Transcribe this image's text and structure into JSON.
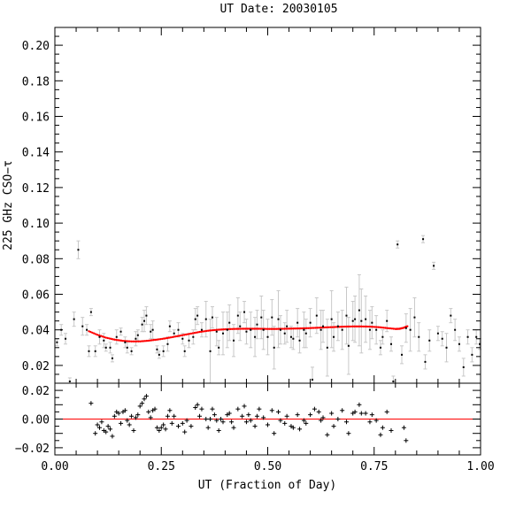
{
  "chart_data": {
    "type": "scatter",
    "title": "UT Date: 20030105",
    "xlabel": "UT (Fraction of Day)",
    "ylabel": "225 GHz CSO−τ",
    "xlim": [
      0.0,
      1.0
    ],
    "ylim": [
      0.01,
      0.21
    ],
    "resid_ylim": [
      -0.025,
      0.025
    ],
    "x_ticks": [
      "0.00",
      "0.25",
      "0.50",
      "0.75",
      "1.00"
    ],
    "y_ticks": [
      "0.02",
      "0.04",
      "0.06",
      "0.08",
      "0.10",
      "0.12",
      "0.14",
      "0.16",
      "0.18",
      "0.20"
    ],
    "resid_ticks": [
      "−0.02",
      "0.00",
      "0.02"
    ],
    "colors": {
      "points": "#000000",
      "errorbars": "#c8c8c8",
      "fit": "#ff0000",
      "zero_line": "#ff0000"
    },
    "grid": false,
    "series": [
      {
        "values": [
          [
            0.005,
            0.033,
            0.002
          ],
          [
            0.015,
            0.04,
            0.003
          ],
          [
            0.025,
            0.035,
            0.003
          ],
          [
            0.035,
            0.011,
            0.002
          ],
          [
            0.045,
            0.046,
            0.004
          ],
          [
            0.055,
            0.085,
            0.005
          ],
          [
            0.065,
            0.042,
            0.005
          ],
          [
            0.075,
            0.04,
            0.003
          ],
          [
            0.08,
            0.028,
            0.003
          ],
          [
            0.085,
            0.05,
            0.002
          ],
          [
            0.095,
            0.028,
            0.003
          ],
          [
            0.105,
            0.036,
            0.004
          ],
          [
            0.115,
            0.034,
            0.004
          ],
          [
            0.12,
            0.03,
            0.002
          ],
          [
            0.13,
            0.03,
            0.003
          ],
          [
            0.135,
            0.024,
            0.002
          ],
          [
            0.145,
            0.036,
            0.004
          ],
          [
            0.155,
            0.039,
            0.002
          ],
          [
            0.165,
            0.033,
            0.003
          ],
          [
            0.17,
            0.03,
            0.003
          ],
          [
            0.18,
            0.028,
            0.002
          ],
          [
            0.19,
            0.035,
            0.004
          ],
          [
            0.195,
            0.037,
            0.003
          ],
          [
            0.205,
            0.043,
            0.004
          ],
          [
            0.21,
            0.045,
            0.006
          ],
          [
            0.215,
            0.048,
            0.005
          ],
          [
            0.225,
            0.039,
            0.004
          ],
          [
            0.23,
            0.04,
            0.005
          ],
          [
            0.24,
            0.029,
            0.002
          ],
          [
            0.245,
            0.026,
            0.002
          ],
          [
            0.255,
            0.028,
            0.003
          ],
          [
            0.265,
            0.032,
            0.004
          ],
          [
            0.27,
            0.042,
            0.003
          ],
          [
            0.28,
            0.038,
            0.002
          ],
          [
            0.29,
            0.04,
            0.004
          ],
          [
            0.3,
            0.035,
            0.003
          ],
          [
            0.305,
            0.028,
            0.003
          ],
          [
            0.315,
            0.034,
            0.004
          ],
          [
            0.325,
            0.036,
            0.004
          ],
          [
            0.33,
            0.046,
            0.006
          ],
          [
            0.335,
            0.048,
            0.005
          ],
          [
            0.345,
            0.04,
            0.004
          ],
          [
            0.355,
            0.046,
            0.01
          ],
          [
            0.365,
            0.028,
            0.018
          ],
          [
            0.37,
            0.047,
            0.006
          ],
          [
            0.38,
            0.039,
            0.008
          ],
          [
            0.385,
            0.03,
            0.004
          ],
          [
            0.395,
            0.038,
            0.012
          ],
          [
            0.405,
            0.04,
            0.01
          ],
          [
            0.41,
            0.044,
            0.01
          ],
          [
            0.42,
            0.034,
            0.009
          ],
          [
            0.43,
            0.048,
            0.01
          ],
          [
            0.435,
            0.042,
            0.008
          ],
          [
            0.445,
            0.05,
            0.006
          ],
          [
            0.45,
            0.039,
            0.007
          ],
          [
            0.46,
            0.04,
            0.01
          ],
          [
            0.47,
            0.036,
            0.011
          ],
          [
            0.475,
            0.043,
            0.008
          ],
          [
            0.485,
            0.047,
            0.012
          ],
          [
            0.49,
            0.04,
            0.011
          ],
          [
            0.5,
            0.036,
            0.01
          ],
          [
            0.51,
            0.047,
            0.01
          ],
          [
            0.515,
            0.03,
            0.012
          ],
          [
            0.525,
            0.046,
            0.016
          ],
          [
            0.53,
            0.04,
            0.008
          ],
          [
            0.54,
            0.038,
            0.006
          ],
          [
            0.545,
            0.042,
            0.009
          ],
          [
            0.555,
            0.036,
            0.006
          ],
          [
            0.56,
            0.035,
            0.006
          ],
          [
            0.57,
            0.044,
            0.008
          ],
          [
            0.575,
            0.034,
            0.007
          ],
          [
            0.585,
            0.04,
            0.01
          ],
          [
            0.59,
            0.038,
            0.008
          ],
          [
            0.6,
            0.044,
            0.008
          ],
          [
            0.605,
            0.012,
            0.007
          ],
          [
            0.615,
            0.048,
            0.01
          ],
          [
            0.625,
            0.04,
            0.011
          ],
          [
            0.63,
            0.042,
            0.009
          ],
          [
            0.64,
            0.03,
            0.016
          ],
          [
            0.65,
            0.046,
            0.016
          ],
          [
            0.655,
            0.036,
            0.008
          ],
          [
            0.665,
            0.042,
            0.008
          ],
          [
            0.675,
            0.04,
            0.011
          ],
          [
            0.685,
            0.048,
            0.016
          ],
          [
            0.69,
            0.031,
            0.016
          ],
          [
            0.7,
            0.045,
            0.011
          ],
          [
            0.705,
            0.046,
            0.013
          ],
          [
            0.715,
            0.051,
            0.02
          ],
          [
            0.72,
            0.045,
            0.018
          ],
          [
            0.73,
            0.046,
            0.013
          ],
          [
            0.74,
            0.04,
            0.011
          ],
          [
            0.745,
            0.044,
            0.009
          ],
          [
            0.755,
            0.04,
            0.008
          ],
          [
            0.765,
            0.03,
            0.004
          ],
          [
            0.77,
            0.036,
            0.004
          ],
          [
            0.78,
            0.045,
            0.006
          ],
          [
            0.79,
            0.032,
            0.004
          ],
          [
            0.795,
            0.011,
            0.003
          ],
          [
            0.805,
            0.088,
            0.002
          ],
          [
            0.815,
            0.026,
            0.005
          ],
          [
            0.825,
            0.041,
            0.008
          ],
          [
            0.835,
            0.04,
            0.012
          ],
          [
            0.845,
            0.047,
            0.011
          ],
          [
            0.855,
            0.036,
            0.008
          ],
          [
            0.865,
            0.091,
            0.002
          ],
          [
            0.87,
            0.022,
            0.004
          ],
          [
            0.88,
            0.034,
            0.006
          ],
          [
            0.89,
            0.076,
            0.002
          ],
          [
            0.9,
            0.038,
            0.004
          ],
          [
            0.91,
            0.035,
            0.004
          ],
          [
            0.92,
            0.03,
            0.008
          ],
          [
            0.93,
            0.048,
            0.004
          ],
          [
            0.94,
            0.04,
            0.006
          ],
          [
            0.95,
            0.032,
            0.004
          ],
          [
            0.96,
            0.019,
            0.005
          ],
          [
            0.97,
            0.036,
            0.004
          ],
          [
            0.98,
            0.026,
            0.004
          ],
          [
            0.99,
            0.036,
            0.004
          ],
          [
            0.998,
            0.032,
            0.003
          ]
        ]
      }
    ],
    "fit": {
      "x": [
        0.08,
        0.1,
        0.12,
        0.14,
        0.16,
        0.18,
        0.2,
        0.22,
        0.24,
        0.26,
        0.28,
        0.3,
        0.32,
        0.34,
        0.36,
        0.38,
        0.4,
        0.42,
        0.44,
        0.46,
        0.48,
        0.5,
        0.52,
        0.54,
        0.56,
        0.58,
        0.6,
        0.62,
        0.64,
        0.66,
        0.68,
        0.7,
        0.72,
        0.74,
        0.76,
        0.78,
        0.8,
        0.81,
        0.82,
        0.83
      ],
      "y": [
        0.0392,
        0.0372,
        0.0356,
        0.0345,
        0.0338,
        0.0335,
        0.0335,
        0.0339,
        0.0345,
        0.0352,
        0.0361,
        0.037,
        0.0379,
        0.0388,
        0.0395,
        0.04,
        0.0403,
        0.0405,
        0.0406,
        0.0406,
        0.0406,
        0.0405,
        0.0405,
        0.0406,
        0.0407,
        0.0408,
        0.041,
        0.0412,
        0.0414,
        0.0416,
        0.0418,
        0.0419,
        0.0419,
        0.0418,
        0.0415,
        0.041,
        0.0405,
        0.0406,
        0.0412,
        0.0422
      ]
    },
    "residuals": [
      [
        0.085,
        0.011
      ],
      [
        0.095,
        -0.01
      ],
      [
        0.1,
        -0.004
      ],
      [
        0.105,
        -0.006
      ],
      [
        0.11,
        -0.002
      ],
      [
        0.115,
        -0.008
      ],
      [
        0.12,
        -0.009
      ],
      [
        0.125,
        -0.005
      ],
      [
        0.13,
        -0.007
      ],
      [
        0.135,
        -0.012
      ],
      [
        0.14,
        0.002
      ],
      [
        0.145,
        0.005
      ],
      [
        0.15,
        0.004
      ],
      [
        0.155,
        -0.003
      ],
      [
        0.16,
        0.005
      ],
      [
        0.165,
        0.006
      ],
      [
        0.17,
        -0.001
      ],
      [
        0.175,
        -0.004
      ],
      [
        0.18,
        0.002
      ],
      [
        0.185,
        -0.008
      ],
      [
        0.19,
        0.001
      ],
      [
        0.195,
        0.003
      ],
      [
        0.2,
        0.009
      ],
      [
        0.205,
        0.011
      ],
      [
        0.21,
        0.014
      ],
      [
        0.215,
        0.016
      ],
      [
        0.22,
        0.005
      ],
      [
        0.225,
        0.001
      ],
      [
        0.23,
        0.006
      ],
      [
        0.235,
        0.007
      ],
      [
        0.24,
        -0.006
      ],
      [
        0.245,
        -0.008
      ],
      [
        0.25,
        -0.006
      ],
      [
        0.255,
        -0.004
      ],
      [
        0.26,
        -0.007
      ],
      [
        0.265,
        0.002
      ],
      [
        0.27,
        0.006
      ],
      [
        0.275,
        -0.003
      ],
      [
        0.28,
        0.002
      ],
      [
        0.29,
        -0.005
      ],
      [
        0.3,
        -0.003
      ],
      [
        0.305,
        -0.009
      ],
      [
        0.31,
        -0.001
      ],
      [
        0.32,
        -0.005
      ],
      [
        0.33,
        0.008
      ],
      [
        0.335,
        0.01
      ],
      [
        0.34,
        0.002
      ],
      [
        0.345,
        0.007
      ],
      [
        0.355,
        0.0
      ],
      [
        0.36,
        -0.006
      ],
      [
        0.365,
        0.0
      ],
      [
        0.37,
        0.007
      ],
      [
        0.375,
        0.003
      ],
      [
        0.38,
        -0.001
      ],
      [
        0.385,
        -0.008
      ],
      [
        0.39,
        0.0
      ],
      [
        0.395,
        -0.002
      ],
      [
        0.405,
        0.003
      ],
      [
        0.41,
        0.004
      ],
      [
        0.415,
        -0.002
      ],
      [
        0.42,
        -0.006
      ],
      [
        0.43,
        0.007
      ],
      [
        0.44,
        0.002
      ],
      [
        0.445,
        0.009
      ],
      [
        0.45,
        -0.002
      ],
      [
        0.455,
        0.003
      ],
      [
        0.46,
        -0.001
      ],
      [
        0.47,
        -0.005
      ],
      [
        0.475,
        0.002
      ],
      [
        0.48,
        0.007
      ],
      [
        0.49,
        0.001
      ],
      [
        0.5,
        -0.004
      ],
      [
        0.51,
        0.006
      ],
      [
        0.515,
        -0.01
      ],
      [
        0.525,
        0.005
      ],
      [
        0.53,
        -0.001
      ],
      [
        0.54,
        -0.003
      ],
      [
        0.545,
        0.002
      ],
      [
        0.555,
        -0.005
      ],
      [
        0.56,
        -0.006
      ],
      [
        0.57,
        0.003
      ],
      [
        0.575,
        -0.007
      ],
      [
        0.585,
        -0.001
      ],
      [
        0.59,
        -0.003
      ],
      [
        0.6,
        0.003
      ],
      [
        0.61,
        0.007
      ],
      [
        0.62,
        0.005
      ],
      [
        0.625,
        -0.001
      ],
      [
        0.63,
        0.001
      ],
      [
        0.64,
        -0.011
      ],
      [
        0.65,
        0.004
      ],
      [
        0.655,
        -0.005
      ],
      [
        0.665,
        0.0
      ],
      [
        0.675,
        0.006
      ],
      [
        0.685,
        -0.002
      ],
      [
        0.69,
        -0.01
      ],
      [
        0.7,
        0.004
      ],
      [
        0.705,
        0.005
      ],
      [
        0.715,
        0.01
      ],
      [
        0.72,
        0.004
      ],
      [
        0.73,
        0.004
      ],
      [
        0.74,
        -0.002
      ],
      [
        0.745,
        0.003
      ],
      [
        0.755,
        -0.001
      ],
      [
        0.765,
        -0.011
      ],
      [
        0.77,
        -0.006
      ],
      [
        0.78,
        0.005
      ],
      [
        0.79,
        -0.008
      ],
      [
        0.82,
        -0.006
      ],
      [
        0.825,
        -0.015
      ]
    ]
  }
}
